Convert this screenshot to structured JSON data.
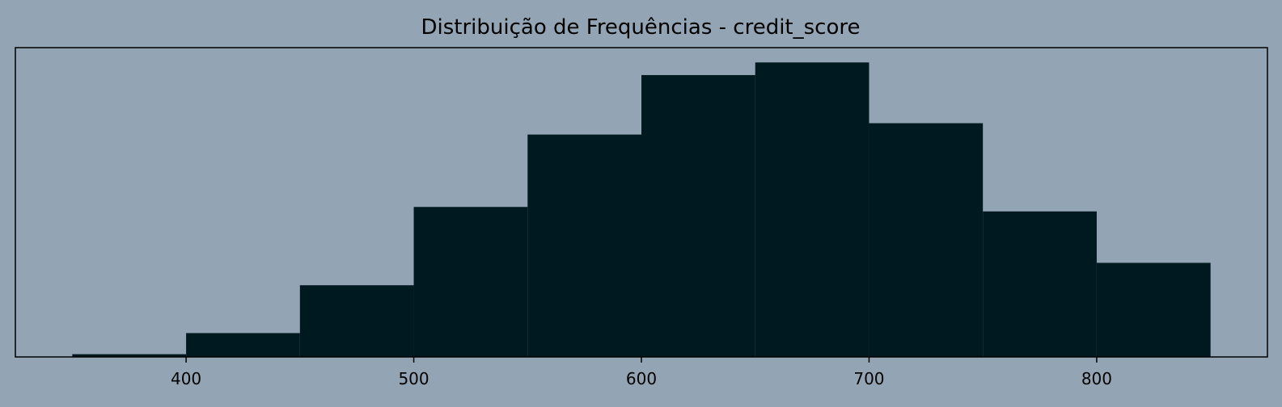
{
  "chart_data": {
    "type": "bar",
    "title": "Distribuição de Frequências - credit_score",
    "xlabel": "",
    "ylabel": "",
    "bins": [
      {
        "start": 350,
        "end": 400,
        "count": 19
      },
      {
        "start": 400,
        "end": 450,
        "count": 166
      },
      {
        "start": 450,
        "end": 500,
        "count": 499
      },
      {
        "start": 500,
        "end": 550,
        "count": 1044
      },
      {
        "start": 550,
        "end": 600,
        "count": 1548
      },
      {
        "start": 600,
        "end": 650,
        "count": 1962
      },
      {
        "start": 650,
        "end": 700,
        "count": 2050
      },
      {
        "start": 700,
        "end": 750,
        "count": 1627
      },
      {
        "start": 750,
        "end": 800,
        "count": 1013
      },
      {
        "start": 800,
        "end": 850,
        "count": 655
      }
    ],
    "xlim": [
      325,
      875
    ],
    "ylim": [
      0,
      2153
    ],
    "xticks": [
      400,
      500,
      600,
      700,
      800
    ],
    "y_axis_ticks_visible": false,
    "grid": false,
    "colors": {
      "background": "#93a5b4",
      "bar": "#001820",
      "axes": "#000000",
      "text": "#000000"
    }
  }
}
